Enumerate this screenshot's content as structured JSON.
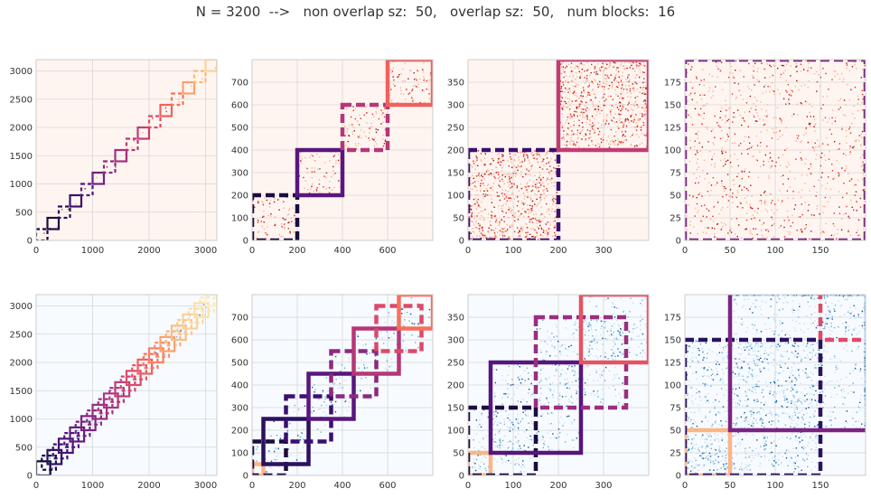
{
  "figure": {
    "title": "N = 3200  -->   non overlap sz:  50,   overlap sz:  50,   num blocks:  16"
  },
  "chart_data": [
    {
      "type": "heatmap",
      "row": 0,
      "col": 0,
      "cmap": "reds",
      "xlim": [
        0,
        3200
      ],
      "ylim": [
        0,
        3200
      ],
      "x_ticks": [
        0,
        1000,
        2000,
        3000
      ],
      "y_ticks": [
        0,
        500,
        1000,
        1500,
        2000,
        2500,
        3000
      ],
      "blocks": [
        {
          "x0": 0,
          "x1": 200,
          "y0": 0,
          "y1": 200,
          "color": "#1b0c41",
          "dash": true
        },
        {
          "x0": 200,
          "x1": 400,
          "y0": 200,
          "y1": 400,
          "color": "#1b0c41",
          "dash": false
        },
        {
          "x0": 400,
          "x1": 600,
          "y0": 400,
          "y1": 600,
          "color": "#2c115f",
          "dash": true
        },
        {
          "x0": 600,
          "x1": 800,
          "y0": 600,
          "y1": 800,
          "color": "#3b0f70",
          "dash": false
        },
        {
          "x0": 800,
          "x1": 1000,
          "y0": 800,
          "y1": 1000,
          "color": "#57157e",
          "dash": true
        },
        {
          "x0": 1000,
          "x1": 1200,
          "y0": 1000,
          "y1": 1200,
          "color": "#721f81",
          "dash": false
        },
        {
          "x0": 1200,
          "x1": 1400,
          "y0": 1200,
          "y1": 1400,
          "color": "#8c2981",
          "dash": true
        },
        {
          "x0": 1400,
          "x1": 1600,
          "y0": 1400,
          "y1": 1600,
          "color": "#a3307e",
          "dash": false
        },
        {
          "x0": 1600,
          "x1": 1800,
          "y0": 1600,
          "y1": 1800,
          "color": "#b73779",
          "dash": true
        },
        {
          "x0": 1800,
          "x1": 2000,
          "y0": 1800,
          "y1": 2000,
          "color": "#c43c75",
          "dash": false
        },
        {
          "x0": 2000,
          "x1": 2200,
          "y0": 2000,
          "y1": 2200,
          "color": "#de4968",
          "dash": true
        },
        {
          "x0": 2200,
          "x1": 2400,
          "y0": 2200,
          "y1": 2400,
          "color": "#f1605d",
          "dash": false
        },
        {
          "x0": 2400,
          "x1": 2600,
          "y0": 2400,
          "y1": 2600,
          "color": "#f7705c",
          "dash": true
        },
        {
          "x0": 2600,
          "x1": 2800,
          "y0": 2600,
          "y1": 2800,
          "color": "#fe9f6d",
          "dash": false
        },
        {
          "x0": 2800,
          "x1": 3000,
          "y0": 2800,
          "y1": 3000,
          "color": "#fdb96e",
          "dash": true
        },
        {
          "x0": 3000,
          "x1": 3200,
          "y0": 3000,
          "y1": 3200,
          "color": "#fcd29e",
          "dash": false
        }
      ]
    },
    {
      "type": "heatmap",
      "row": 0,
      "col": 1,
      "cmap": "reds",
      "xlim": [
        0,
        800
      ],
      "ylim": [
        0,
        800
      ],
      "x_ticks": [
        0,
        200,
        400,
        600
      ],
      "y_ticks": [
        0,
        100,
        200,
        300,
        400,
        500,
        600,
        700
      ],
      "blocks": [
        {
          "x0": 0,
          "x1": 200,
          "y0": 0,
          "y1": 200,
          "color": "#1b0c41",
          "dash": true
        },
        {
          "x0": 200,
          "x1": 400,
          "y0": 200,
          "y1": 400,
          "color": "#5a167e",
          "dash": false
        },
        {
          "x0": 400,
          "x1": 600,
          "y0": 400,
          "y1": 600,
          "color": "#b63679",
          "dash": true
        },
        {
          "x0": 600,
          "x1": 800,
          "y0": 600,
          "y1": 800,
          "color": "#f1605d",
          "dash": false
        }
      ]
    },
    {
      "type": "heatmap",
      "row": 0,
      "col": 2,
      "cmap": "reds",
      "xlim": [
        0,
        400
      ],
      "ylim": [
        0,
        400
      ],
      "x_ticks": [
        0,
        100,
        200,
        300
      ],
      "y_ticks": [
        0,
        50,
        100,
        150,
        200,
        250,
        300,
        350
      ],
      "blocks": [
        {
          "x0": 0,
          "x1": 200,
          "y0": 0,
          "y1": 200,
          "color": "#3b0f70",
          "dash": true
        },
        {
          "x0": 200,
          "x1": 400,
          "y0": 200,
          "y1": 400,
          "color": "#c13b75",
          "dash": false
        }
      ]
    },
    {
      "type": "heatmap",
      "row": 0,
      "col": 3,
      "cmap": "reds",
      "xlim": [
        0,
        200
      ],
      "ylim": [
        0,
        200
      ],
      "x_ticks": [
        0,
        50,
        100,
        150
      ],
      "y_ticks": [
        0,
        25,
        50,
        75,
        100,
        125,
        150,
        175
      ],
      "blocks": [
        {
          "x0": 0,
          "x1": 200,
          "y0": 0,
          "y1": 200,
          "color": "#7b2382",
          "dash": true
        }
      ]
    },
    {
      "type": "heatmap",
      "row": 1,
      "col": 0,
      "cmap": "blues",
      "xlim": [
        0,
        3200
      ],
      "ylim": [
        0,
        3200
      ],
      "x_ticks": [
        0,
        1000,
        2000,
        3000
      ],
      "y_ticks": [
        0,
        500,
        1000,
        1500,
        2000,
        2500,
        3000
      ],
      "blocks": [
        {
          "x0": 0,
          "x1": 250,
          "y0": 0,
          "y1": 250,
          "color": "#0d0829",
          "dash": false
        },
        {
          "x0": 100,
          "x1": 350,
          "y0": 100,
          "y1": 350,
          "color": "#1b0c41",
          "dash": true
        },
        {
          "x0": 200,
          "x1": 450,
          "y0": 200,
          "y1": 450,
          "color": "#2c115f",
          "dash": false
        },
        {
          "x0": 300,
          "x1": 550,
          "y0": 300,
          "y1": 550,
          "color": "#3b0f70",
          "dash": true
        },
        {
          "x0": 400,
          "x1": 650,
          "y0": 400,
          "y1": 650,
          "color": "#4c117a",
          "dash": false
        },
        {
          "x0": 500,
          "x1": 750,
          "y0": 500,
          "y1": 750,
          "color": "#57157e",
          "dash": true
        },
        {
          "x0": 600,
          "x1": 850,
          "y0": 600,
          "y1": 850,
          "color": "#641a80",
          "dash": false
        },
        {
          "x0": 700,
          "x1": 950,
          "y0": 700,
          "y1": 950,
          "color": "#721f81",
          "dash": true
        },
        {
          "x0": 800,
          "x1": 1050,
          "y0": 800,
          "y1": 1050,
          "color": "#7e2482",
          "dash": false
        },
        {
          "x0": 900,
          "x1": 1150,
          "y0": 900,
          "y1": 1150,
          "color": "#8c2981",
          "dash": true
        },
        {
          "x0": 1000,
          "x1": 1250,
          "y0": 1000,
          "y1": 1250,
          "color": "#982d80",
          "dash": false
        },
        {
          "x0": 1100,
          "x1": 1350,
          "y0": 1100,
          "y1": 1350,
          "color": "#a3307e",
          "dash": true
        },
        {
          "x0": 1200,
          "x1": 1450,
          "y0": 1200,
          "y1": 1450,
          "color": "#b0347c",
          "dash": false
        },
        {
          "x0": 1300,
          "x1": 1550,
          "y0": 1300,
          "y1": 1550,
          "color": "#b73779",
          "dash": true
        },
        {
          "x0": 1400,
          "x1": 1650,
          "y0": 1400,
          "y1": 1650,
          "color": "#c43c75",
          "dash": false
        },
        {
          "x0": 1500,
          "x1": 1750,
          "y0": 1500,
          "y1": 1750,
          "color": "#d04471",
          "dash": true
        },
        {
          "x0": 1600,
          "x1": 1850,
          "y0": 1600,
          "y1": 1850,
          "color": "#de4968",
          "dash": false
        },
        {
          "x0": 1700,
          "x1": 1950,
          "y0": 1700,
          "y1": 1950,
          "color": "#e75263",
          "dash": true
        },
        {
          "x0": 1800,
          "x1": 2050,
          "y0": 1800,
          "y1": 2050,
          "color": "#f1605d",
          "dash": false
        },
        {
          "x0": 1900,
          "x1": 2150,
          "y0": 1900,
          "y1": 2150,
          "color": "#f7705c",
          "dash": true
        },
        {
          "x0": 2000,
          "x1": 2250,
          "y0": 2000,
          "y1": 2250,
          "color": "#fa815f",
          "dash": false
        },
        {
          "x0": 2100,
          "x1": 2350,
          "y0": 2100,
          "y1": 2350,
          "color": "#fc8f65",
          "dash": true
        },
        {
          "x0": 2200,
          "x1": 2450,
          "y0": 2200,
          "y1": 2450,
          "color": "#fe9f6d",
          "dash": false
        },
        {
          "x0": 2300,
          "x1": 2550,
          "y0": 2300,
          "y1": 2550,
          "color": "#feae77",
          "dash": true
        },
        {
          "x0": 2400,
          "x1": 2650,
          "y0": 2400,
          "y1": 2650,
          "color": "#febb81",
          "dash": false
        },
        {
          "x0": 2500,
          "x1": 2750,
          "y0": 2500,
          "y1": 2750,
          "color": "#fec68a",
          "dash": true
        },
        {
          "x0": 2600,
          "x1": 2850,
          "y0": 2600,
          "y1": 2850,
          "color": "#fdd094",
          "dash": false
        },
        {
          "x0": 2700,
          "x1": 2950,
          "y0": 2700,
          "y1": 2950,
          "color": "#fcd9a0",
          "dash": true
        },
        {
          "x0": 2800,
          "x1": 3050,
          "y0": 2800,
          "y1": 3050,
          "color": "#fce1ab",
          "dash": false
        },
        {
          "x0": 2900,
          "x1": 3150,
          "y0": 2900,
          "y1": 3150,
          "color": "#fce8b6",
          "dash": true
        },
        {
          "x0": 3000,
          "x1": 3200,
          "y0": 3000,
          "y1": 3200,
          "color": "#fcf0c4",
          "dash": false
        }
      ]
    },
    {
      "type": "heatmap",
      "row": 1,
      "col": 1,
      "cmap": "blues",
      "xlim": [
        0,
        800
      ],
      "ylim": [
        0,
        800
      ],
      "x_ticks": [
        0,
        200,
        400,
        600
      ],
      "y_ticks": [
        0,
        100,
        200,
        300,
        400,
        500,
        600,
        700
      ],
      "blocks": [
        {
          "x0": 0,
          "x1": 50,
          "y0": 0,
          "y1": 50,
          "color": "#fcb585",
          "dash": false
        },
        {
          "x0": 0,
          "x1": 150,
          "y0": 0,
          "y1": 150,
          "color": "#1b0c41",
          "dash": true
        },
        {
          "x0": 50,
          "x1": 250,
          "y0": 50,
          "y1": 250,
          "color": "#2c115f",
          "dash": false
        },
        {
          "x0": 150,
          "x1": 350,
          "y0": 150,
          "y1": 350,
          "color": "#3b0f70",
          "dash": true
        },
        {
          "x0": 250,
          "x1": 450,
          "y0": 250,
          "y1": 450,
          "color": "#5a167e",
          "dash": false
        },
        {
          "x0": 350,
          "x1": 550,
          "y0": 350,
          "y1": 550,
          "color": "#8c2981",
          "dash": true
        },
        {
          "x0": 450,
          "x1": 650,
          "y0": 450,
          "y1": 650,
          "color": "#b63679",
          "dash": false
        },
        {
          "x0": 550,
          "x1": 750,
          "y0": 550,
          "y1": 750,
          "color": "#de4968",
          "dash": true
        },
        {
          "x0": 650,
          "x1": 800,
          "y0": 650,
          "y1": 800,
          "color": "#f7705c",
          "dash": false
        }
      ]
    },
    {
      "type": "heatmap",
      "row": 1,
      "col": 2,
      "cmap": "blues",
      "xlim": [
        0,
        400
      ],
      "ylim": [
        0,
        400
      ],
      "x_ticks": [
        0,
        100,
        200,
        300
      ],
      "y_ticks": [
        0,
        50,
        100,
        150,
        200,
        250,
        300,
        350
      ],
      "blocks": [
        {
          "x0": 0,
          "x1": 50,
          "y0": 0,
          "y1": 50,
          "color": "#fcb585",
          "dash": false
        },
        {
          "x0": 0,
          "x1": 150,
          "y0": 0,
          "y1": 150,
          "color": "#1b0c41",
          "dash": true
        },
        {
          "x0": 50,
          "x1": 250,
          "y0": 50,
          "y1": 250,
          "color": "#57157e",
          "dash": false
        },
        {
          "x0": 150,
          "x1": 350,
          "y0": 150,
          "y1": 350,
          "color": "#9b2e7f",
          "dash": true
        },
        {
          "x0": 250,
          "x1": 400,
          "y0": 250,
          "y1": 400,
          "color": "#e75263",
          "dash": false
        }
      ]
    },
    {
      "type": "heatmap",
      "row": 1,
      "col": 3,
      "cmap": "blues",
      "xlim": [
        0,
        200
      ],
      "ylim": [
        0,
        200
      ],
      "x_ticks": [
        0,
        50,
        100,
        150
      ],
      "y_ticks": [
        0,
        25,
        50,
        75,
        100,
        125,
        150,
        175
      ],
      "blocks": [
        {
          "x0": 0,
          "x1": 50,
          "y0": 0,
          "y1": 50,
          "color": "#fcb585",
          "dash": false
        },
        {
          "x0": 0,
          "x1": 150,
          "y0": 0,
          "y1": 150,
          "color": "#2c115f",
          "dash": true
        },
        {
          "x0": 50,
          "x1": 250,
          "y0": 50,
          "y1": 250,
          "color": "#7b2382",
          "dash": false
        },
        {
          "x0": 150,
          "x1": 350,
          "y0": 150,
          "y1": 350,
          "color": "#e0496a",
          "dash": true
        }
      ]
    }
  ]
}
